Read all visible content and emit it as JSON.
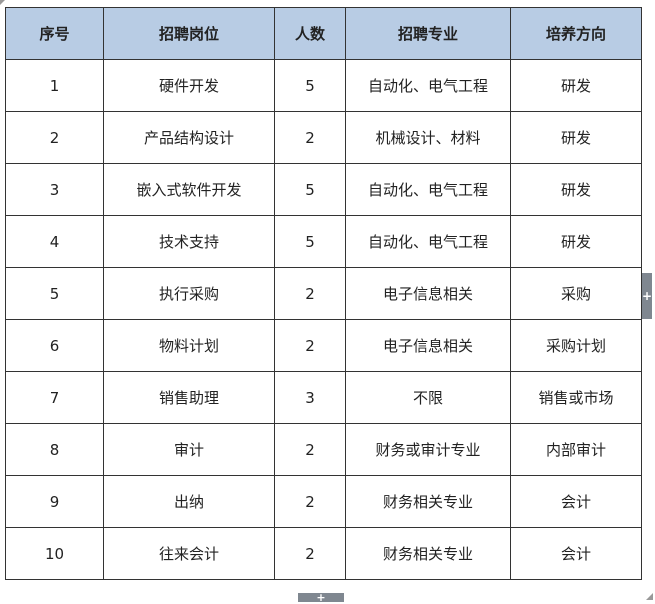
{
  "table": {
    "headers": [
      "序号",
      "招聘岗位",
      "人数",
      "招聘专业",
      "培养方向"
    ],
    "rows": [
      [
        "1",
        "硬件开发",
        "5",
        "自动化、电气工程",
        "研发"
      ],
      [
        "2",
        "产品结构设计",
        "2",
        "机械设计、材料",
        "研发"
      ],
      [
        "3",
        "嵌入式软件开发",
        "5",
        "自动化、电气工程",
        "研发"
      ],
      [
        "4",
        "技术支持",
        "5",
        "自动化、电气工程",
        "研发"
      ],
      [
        "5",
        "执行采购",
        "2",
        "电子信息相关",
        "采购"
      ],
      [
        "6",
        "物料计划",
        "2",
        "电子信息相关",
        "采购计划"
      ],
      [
        "7",
        "销售助理",
        "3",
        "不限",
        "销售或市场"
      ],
      [
        "8",
        "审计",
        "2",
        "财务或审计专业",
        "内部审计"
      ],
      [
        "9",
        "出纳",
        "2",
        "财务相关专业",
        "会计"
      ],
      [
        "10",
        "往来会计",
        "2",
        "财务相关专业",
        "会计"
      ]
    ],
    "header_color": "#b8cce4"
  },
  "controls": {
    "add_column": "+",
    "add_row": "+"
  }
}
